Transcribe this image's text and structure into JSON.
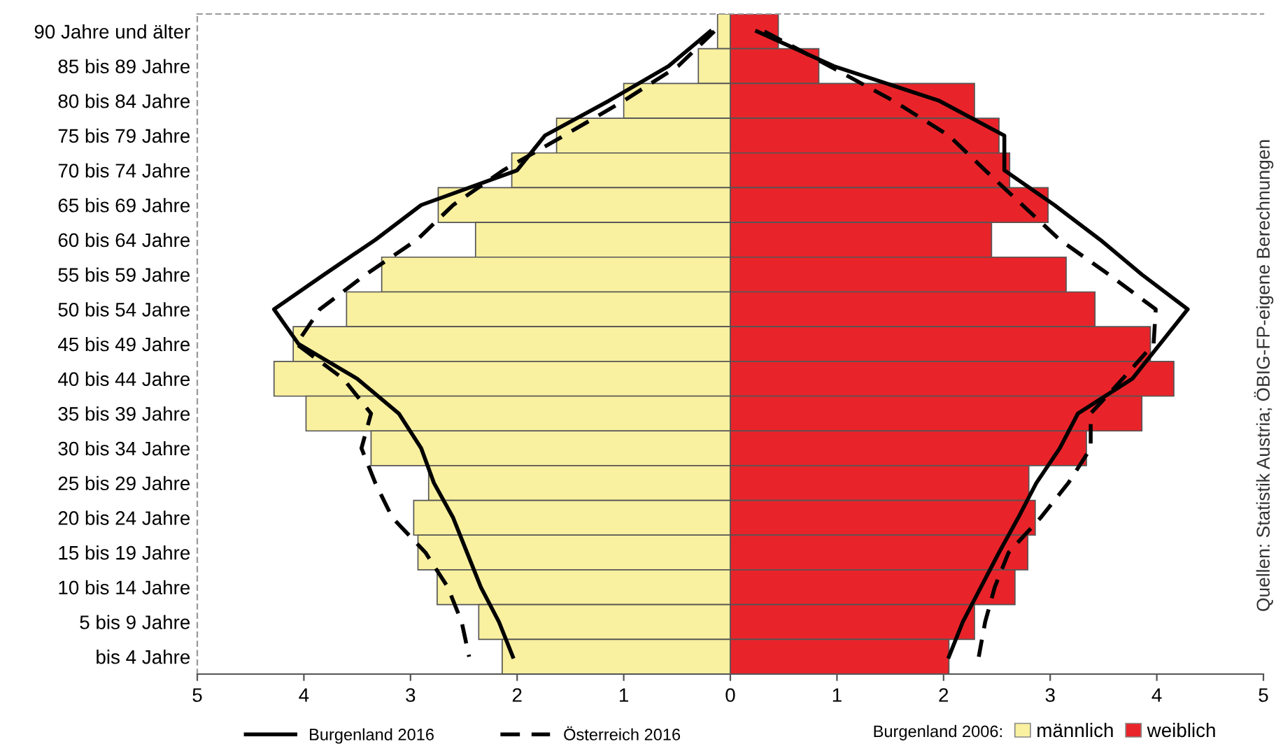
{
  "chart_data": {
    "type": "bar",
    "orientation": "horizontal",
    "stacked": true,
    "legend": "bottom",
    "legend_title": "Burgenland 2006:",
    "grid": false,
    "categories": [
      "90 Jahre und älter",
      "85 bis 89 Jahre",
      "80 bis 84 Jahre",
      "75 bis 79 Jahre",
      "70 bis 74 Jahre",
      "65 bis 69 Jahre",
      "60 bis 64 Jahre",
      "55 bis 59 Jahre",
      "50 bis 54 Jahre",
      "45 bis 49 Jahre",
      "40 bis 44 Jahre",
      "35 bis 39 Jahre",
      "30 bis 34 Jahre",
      "25 bis 29 Jahre",
      "20 bis 24 Jahre",
      "15 bis 19 Jahre",
      "10 bis 14 Jahre",
      "5 bis 9 Jahre",
      "bis 4 Jahre"
    ],
    "xlim": [
      -5,
      5
    ],
    "xticks": [
      {
        "value": -5,
        "label": "5"
      },
      {
        "value": -4,
        "label": "4"
      },
      {
        "value": -3,
        "label": "3"
      },
      {
        "value": -2,
        "label": "2"
      },
      {
        "value": -1,
        "label": "1"
      },
      0,
      1,
      2,
      3,
      4,
      5
    ],
    "annotations": [
      "Quellen: Statistik Austria; ÖBIG-FP-eigene Berechnungen"
    ],
    "series": [
      {
        "name": "männlich",
        "color": "#f9f0a0",
        "values": [
          -0.12,
          -0.3,
          -1.0,
          -1.63,
          -2.05,
          -2.74,
          -2.39,
          -3.27,
          -3.6,
          -4.1,
          -4.28,
          -3.98,
          -3.37,
          -2.83,
          -2.97,
          -2.93,
          -2.75,
          -2.36,
          -2.14
        ]
      },
      {
        "name": "weiblich",
        "color": "#e8242a",
        "values": [
          0.45,
          0.83,
          2.29,
          2.52,
          2.62,
          2.98,
          2.45,
          3.15,
          3.42,
          3.94,
          4.16,
          3.86,
          3.34,
          2.8,
          2.86,
          2.79,
          2.67,
          2.29,
          2.05
        ]
      },
      {
        "name": "Burgenland 2016",
        "type": "line",
        "line_style": "solid",
        "color": "#000000",
        "values": [
          -0.19,
          -0.58,
          -1.14,
          -1.74,
          -2.0,
          -2.9,
          -3.33,
          -3.81,
          -4.28,
          -4.05,
          -3.5,
          -3.11,
          -2.9,
          -2.78,
          -2.6,
          -2.47,
          -2.34,
          -2.17,
          -2.04
        ]
      },
      {
        "name": "Österreich 2016",
        "type": "line",
        "line_style": "dashed",
        "color": "#000000",
        "values": [
          -0.15,
          -0.49,
          -1.0,
          -1.56,
          -2.13,
          -2.6,
          -2.94,
          -3.42,
          -3.85,
          -4.07,
          -3.63,
          -3.37,
          -3.46,
          -3.33,
          -3.17,
          -2.86,
          -2.65,
          -2.52,
          -2.45
        ]
      },
      {
        "type": "line",
        "line_style": "solid",
        "color": "#000000",
        "values": [
          0.25,
          0.97,
          1.96,
          2.57,
          2.57,
          3.04,
          3.47,
          3.86,
          4.29,
          4.03,
          3.77,
          3.26,
          3.09,
          2.87,
          2.7,
          2.52,
          2.35,
          2.18,
          2.05
        ]
      },
      {
        "type": "line",
        "line_style": "dashed",
        "color": "#000000",
        "values": [
          0.32,
          0.93,
          1.53,
          2.05,
          2.39,
          2.74,
          3.09,
          3.55,
          3.99,
          3.97,
          3.68,
          3.38,
          3.38,
          3.17,
          2.91,
          2.61,
          2.48,
          2.39,
          2.33
        ]
      }
    ]
  }
}
